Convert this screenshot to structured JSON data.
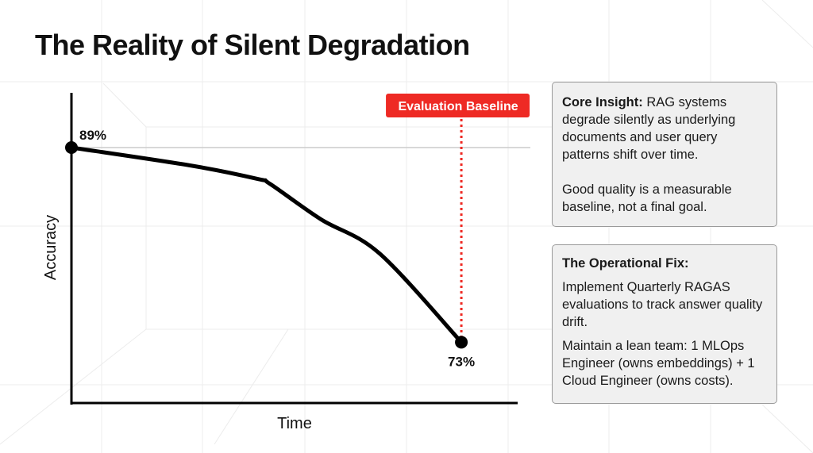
{
  "title": "The Reality of Silent Degradation",
  "chart_data": {
    "type": "line",
    "xlabel": "Time",
    "ylabel": "Accuracy",
    "xlim": [
      0,
      1.12
    ],
    "ylim": [
      68,
      93.5
    ],
    "grid": false,
    "x": [
      0,
      0.31,
      0.48,
      0.51,
      0.64,
      0.79,
      1.0
    ],
    "y": [
      89,
      87.5,
      86.4,
      86.0,
      83.1,
      80.3,
      73
    ],
    "point_labels": [
      {
        "index": 0,
        "text": "89%"
      },
      {
        "index": 6,
        "text": "73%"
      }
    ],
    "reference_line": {
      "y": 89,
      "color": "#cccccc"
    },
    "annotation": {
      "x": 1.0,
      "text": "Evaluation Baseline",
      "color": "#ee2a24"
    },
    "line_color": "#000000"
  },
  "cards": {
    "insight": {
      "heading": "Core Insight:",
      "text": " RAG systems degrade silently as underlying documents and user query patterns shift over time.",
      "text2": "Good quality is a measurable baseline, not a final goal."
    },
    "fix": {
      "heading": "The Operational Fix:",
      "text": "Implement Quarterly RAGAS evaluations to track answer quality drift.",
      "text2": "Maintain a lean team: 1 MLOps Engineer (owns embeddings) + 1 Cloud Engineer (owns costs)."
    }
  }
}
